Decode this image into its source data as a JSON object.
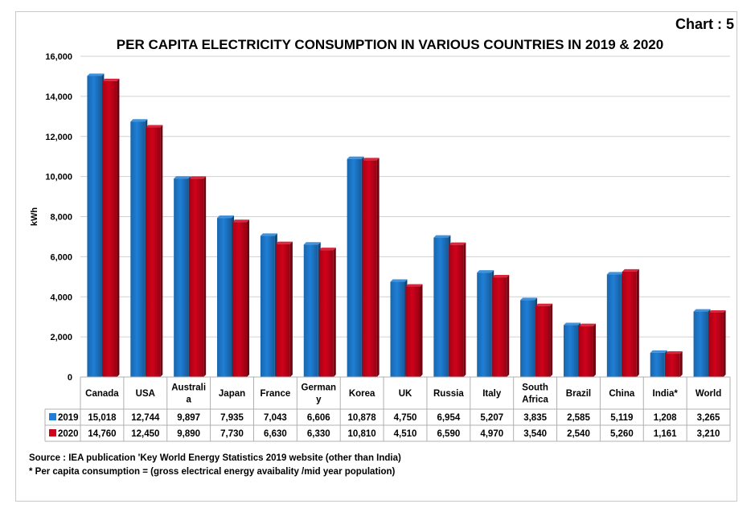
{
  "chart_label": "Chart : 5",
  "chart_data": {
    "type": "bar",
    "title": "PER CAPITA ELECTRICITY CONSUMPTION  IN VARIOUS COUNTRIES IN 2019 & 2020",
    "ylabel": "kWh",
    "ylim": [
      0,
      16000
    ],
    "yticks": [
      "0",
      "2,000",
      "4,000",
      "6,000",
      "8,000",
      "10,000",
      "12,000",
      "14,000",
      "16,000"
    ],
    "grid": true,
    "categories": [
      "Canada",
      "USA",
      "Australia",
      "Japan",
      "France",
      "Germany",
      "Korea",
      "UK",
      "Russia",
      "Italy",
      "South Africa",
      "Brazil",
      "China",
      "India*",
      "World"
    ],
    "category_labels": [
      [
        "Canada"
      ],
      [
        "USA"
      ],
      [
        "Australi",
        "a"
      ],
      [
        "Japan"
      ],
      [
        "France"
      ],
      [
        "German",
        "y"
      ],
      [
        "Korea"
      ],
      [
        "UK"
      ],
      [
        "Russia"
      ],
      [
        "Italy"
      ],
      [
        "South",
        "Africa"
      ],
      [
        "Brazil"
      ],
      [
        "China"
      ],
      [
        "India*"
      ],
      [
        "World"
      ]
    ],
    "series": [
      {
        "name": "2019",
        "color": "#1f7fd6",
        "values": [
          15018,
          12744,
          9897,
          7935,
          7043,
          6606,
          10878,
          4750,
          6954,
          5207,
          3835,
          2585,
          5119,
          1208,
          3265
        ],
        "labels": [
          "15,018",
          "12,744",
          "9,897",
          "7,935",
          "7,043",
          "6,606",
          "10,878",
          "4,750",
          "6,954",
          "5,207",
          "3,835",
          "2,585",
          "5,119",
          "1,208",
          "3,265"
        ]
      },
      {
        "name": "2020",
        "color": "#d0021b",
        "values": [
          14760,
          12450,
          9890,
          7730,
          6630,
          6330,
          10810,
          4510,
          6590,
          4970,
          3540,
          2540,
          5260,
          1161,
          3210
        ],
        "labels": [
          "14,760",
          "12,450",
          "9,890",
          "7,730",
          "6,630",
          "6,330",
          "10,810",
          "4,510",
          "6,590",
          "4,970",
          "3,540",
          "2,540",
          "5,260",
          "1,161",
          "3,210"
        ]
      }
    ]
  },
  "notes": {
    "source": "Source : IEA publication 'Key World Energy Statistics 2019 website (other than India)",
    "footnote": "* Per capita consumption  = (gross electrical energy avaibality /mid year population)"
  }
}
